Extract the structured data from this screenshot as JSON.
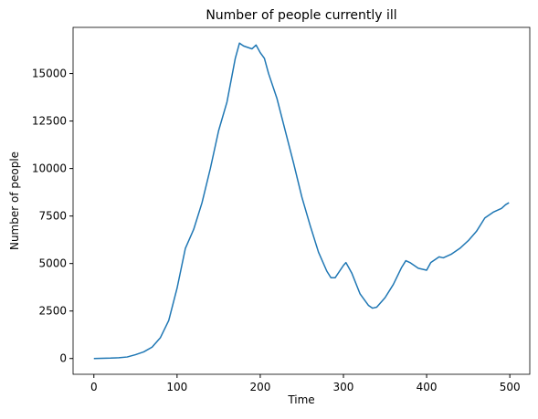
{
  "chart_data": {
    "type": "line",
    "title": "Number of people currently ill",
    "xlabel": "Time",
    "ylabel": "Number of people",
    "x": [
      0,
      10,
      20,
      30,
      40,
      50,
      60,
      70,
      80,
      90,
      100,
      110,
      120,
      130,
      140,
      150,
      160,
      170,
      175,
      180,
      190,
      195,
      200,
      205,
      210,
      220,
      230,
      240,
      250,
      260,
      270,
      280,
      285,
      290,
      300,
      303,
      310,
      320,
      330,
      335,
      340,
      350,
      360,
      370,
      375,
      380,
      390,
      400,
      405,
      410,
      415,
      420,
      430,
      440,
      450,
      460,
      470,
      480,
      490,
      495,
      499
    ],
    "series": [
      {
        "name": "Number of people currently ill",
        "color": "#1f77b4",
        "values": [
          0,
          10,
          20,
          40,
          80,
          200,
          350,
          600,
          1100,
          2000,
          3700,
          5800,
          6800,
          8200,
          10000,
          12000,
          13500,
          15800,
          16600,
          16450,
          16300,
          16500,
          16100,
          15800,
          15000,
          13700,
          12000,
          10300,
          8500,
          7000,
          5600,
          4600,
          4250,
          4250,
          4900,
          5050,
          4500,
          3400,
          2800,
          2650,
          2700,
          3200,
          3900,
          4800,
          5150,
          5050,
          4750,
          4650,
          5050,
          5200,
          5350,
          5300,
          5500,
          5800,
          6200,
          6700,
          7400,
          7700,
          7900,
          8100,
          8200
        ]
      }
    ],
    "xlim": [
      -25,
      524
    ],
    "ylim": [
      -830,
      17430
    ],
    "xticks": [
      0,
      100,
      200,
      300,
      400,
      500
    ],
    "yticks": [
      0,
      2500,
      5000,
      7500,
      10000,
      12500,
      15000
    ]
  }
}
